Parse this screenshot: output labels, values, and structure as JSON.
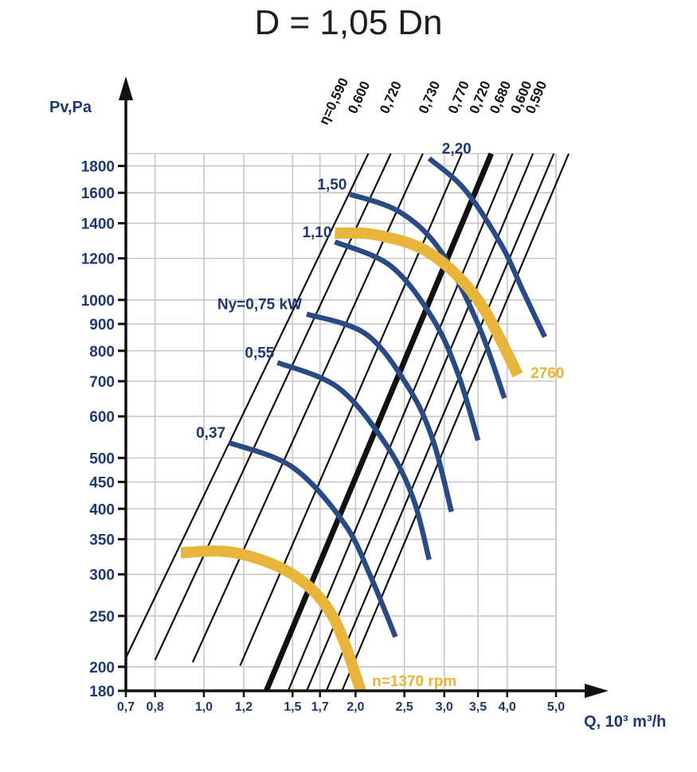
{
  "title": "D = 1,05 Dn",
  "colors": {
    "grid": "#c8c8c8",
    "axis": "#111111",
    "efficiency_line": "#111111",
    "power_curve": "#2a4a85",
    "speed_curve": "#e9b43a",
    "tick_text": "#1e3a6e"
  },
  "chart_data": {
    "type": "line",
    "title": "D = 1,05 Dn",
    "xlabel": "Q, 10³ m³/h",
    "ylabel": "Pv,Pa",
    "x_scale": "log",
    "y_scale": "log",
    "xlim": [
      0.7,
      5.0
    ],
    "ylim": [
      180,
      1900
    ],
    "grid": true,
    "x_ticks": [
      {
        "value": 0.7,
        "label": "0,7"
      },
      {
        "value": 0.8,
        "label": "0,8"
      },
      {
        "value": 1.0,
        "label": "1,0"
      },
      {
        "value": 1.2,
        "label": "1,2"
      },
      {
        "value": 1.5,
        "label": "1,5"
      },
      {
        "value": 1.7,
        "label": "1,7"
      },
      {
        "value": 2.0,
        "label": "2,0"
      },
      {
        "value": 2.5,
        "label": "2,5"
      },
      {
        "value": 3.0,
        "label": "3,0"
      },
      {
        "value": 3.5,
        "label": "3,5"
      },
      {
        "value": 4.0,
        "label": "4,0"
      },
      {
        "value": 5.0,
        "label": "5,0"
      }
    ],
    "y_ticks": [
      {
        "value": 180,
        "label": "180"
      },
      {
        "value": 200,
        "label": "200"
      },
      {
        "value": 250,
        "label": "250"
      },
      {
        "value": 300,
        "label": "300"
      },
      {
        "value": 350,
        "label": "350"
      },
      {
        "value": 400,
        "label": "400"
      },
      {
        "value": 450,
        "label": "450"
      },
      {
        "value": 500,
        "label": "500"
      },
      {
        "value": 600,
        "label": "600"
      },
      {
        "value": 700,
        "label": "700"
      },
      {
        "value": 800,
        "label": "800"
      },
      {
        "value": 900,
        "label": "900"
      },
      {
        "value": 1000,
        "label": "1000"
      },
      {
        "value": 1200,
        "label": "1200"
      },
      {
        "value": 1400,
        "label": "1400"
      },
      {
        "value": 1600,
        "label": "1600"
      },
      {
        "value": 1800,
        "label": "1800"
      }
    ],
    "efficiency_lines": [
      {
        "label": "η=0,590",
        "bold": false,
        "points": [
          [
            0.7,
            208
          ],
          [
            2.12,
            1900
          ]
        ]
      },
      {
        "label": "0,600",
        "bold": false,
        "points": [
          [
            0.8,
            206
          ],
          [
            2.35,
            1900
          ]
        ]
      },
      {
        "label": "0,720",
        "bold": false,
        "points": [
          [
            0.95,
            204
          ],
          [
            2.72,
            1900
          ]
        ]
      },
      {
        "label": "0,730",
        "bold": false,
        "points": [
          [
            1.18,
            201
          ],
          [
            3.25,
            1900
          ]
        ]
      },
      {
        "label": "0,770",
        "bold": true,
        "points": [
          [
            1.33,
            180
          ],
          [
            3.72,
            1900
          ]
        ]
      },
      {
        "label": "0,720",
        "bold": false,
        "points": [
          [
            1.47,
            180
          ],
          [
            4.1,
            1900
          ]
        ]
      },
      {
        "label": "0,680",
        "bold": false,
        "points": [
          [
            1.6,
            180
          ],
          [
            4.5,
            1900
          ]
        ]
      },
      {
        "label": "0,600",
        "bold": false,
        "points": [
          [
            1.75,
            180
          ],
          [
            4.95,
            1900
          ]
        ]
      },
      {
        "label": "0,590",
        "bold": false,
        "points": [
          [
            1.88,
            180
          ],
          [
            5.3,
            1900
          ]
        ]
      }
    ],
    "power_curves": [
      {
        "label": "0,37",
        "points": [
          [
            1.12,
            535
          ],
          [
            1.5,
            480
          ],
          [
            1.9,
            375
          ],
          [
            2.15,
            295
          ],
          [
            2.4,
            228
          ]
        ]
      },
      {
        "label": "0,55",
        "points": [
          [
            1.4,
            760
          ],
          [
            1.85,
            680
          ],
          [
            2.3,
            530
          ],
          [
            2.6,
            420
          ],
          [
            2.8,
            320
          ]
        ]
      },
      {
        "label": "Ny=0,75 kW",
        "points": [
          [
            1.6,
            940
          ],
          [
            2.1,
            860
          ],
          [
            2.55,
            680
          ],
          [
            2.85,
            540
          ],
          [
            3.1,
            395
          ]
        ]
      },
      {
        "label": "1,10",
        "points": [
          [
            1.82,
            1290
          ],
          [
            2.35,
            1160
          ],
          [
            2.85,
            920
          ],
          [
            3.2,
            720
          ],
          [
            3.5,
            540
          ]
        ]
      },
      {
        "label": "1,50",
        "points": [
          [
            1.95,
            1590
          ],
          [
            2.45,
            1470
          ],
          [
            2.95,
            1240
          ],
          [
            3.5,
            900
          ],
          [
            3.95,
            650
          ]
        ]
      },
      {
        "label": "2,20",
        "points": [
          [
            2.8,
            1860
          ],
          [
            3.3,
            1620
          ],
          [
            3.9,
            1270
          ],
          [
            4.3,
            1040
          ],
          [
            4.75,
            850
          ]
        ]
      }
    ],
    "speed_curves": [
      {
        "label": "n=1370 rpm",
        "points": [
          [
            0.9,
            330
          ],
          [
            1.15,
            330
          ],
          [
            1.5,
            300
          ],
          [
            1.8,
            250
          ],
          [
            2.05,
            180
          ]
        ]
      },
      {
        "label": "2760",
        "points": [
          [
            1.82,
            1340
          ],
          [
            2.2,
            1330
          ],
          [
            2.8,
            1230
          ],
          [
            3.5,
            1000
          ],
          [
            4.2,
            720
          ]
        ]
      }
    ]
  }
}
